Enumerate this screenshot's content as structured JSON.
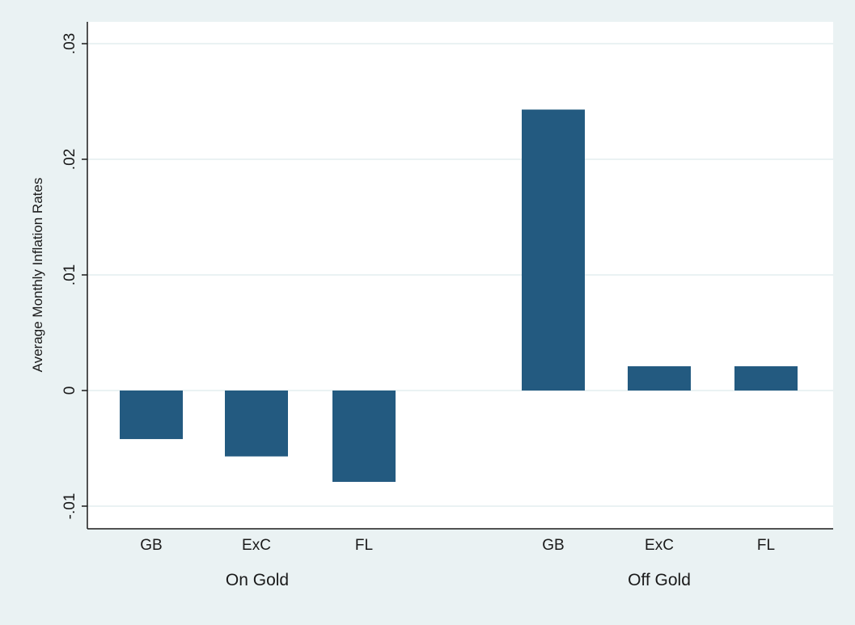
{
  "chart_data": {
    "type": "bar",
    "title": "",
    "ylabel": "Average Monthly Inflation Rates",
    "ylim": [
      -0.011,
      0.031
    ],
    "yticks": [
      -0.01,
      0,
      0.01,
      0.02,
      0.03
    ],
    "ytick_labels": [
      "-.01",
      "0",
      ".01",
      ".02",
      ".03"
    ],
    "grid": true,
    "groups": [
      {
        "label": "On Gold",
        "categories": [
          "GB",
          "ExC",
          "FL"
        ],
        "values": [
          -0.0042,
          -0.0057,
          -0.0079
        ]
      },
      {
        "label": "Off Gold",
        "categories": [
          "GB",
          "ExC",
          "FL"
        ],
        "values": [
          0.0243,
          0.0021,
          0.0021
        ]
      }
    ],
    "colors": {
      "bar": "#235a80",
      "background": "#eaf2f3",
      "plot_background": "#ffffff",
      "grid": "#eaf2f3",
      "axis": "#1a1a1a"
    }
  }
}
